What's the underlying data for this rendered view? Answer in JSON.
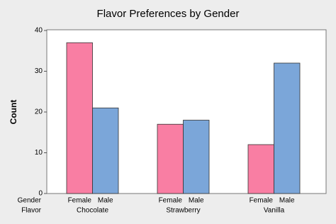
{
  "chart_data": {
    "type": "bar",
    "title": "Flavor Preferences by Gender",
    "ylabel": "Count",
    "xlabel": "Flavor",
    "group_label": "Gender",
    "categories": [
      "Chocolate",
      "Strawberry",
      "Vanilla"
    ],
    "series": [
      {
        "name": "Female",
        "color": "#f97ea3",
        "values": [
          37,
          17,
          12
        ]
      },
      {
        "name": "Male",
        "color": "#7ba6d9",
        "values": [
          21,
          18,
          32
        ]
      }
    ],
    "ylim": [
      0,
      40
    ],
    "yticks": [
      0,
      10,
      20,
      30,
      40
    ],
    "grid": false
  }
}
